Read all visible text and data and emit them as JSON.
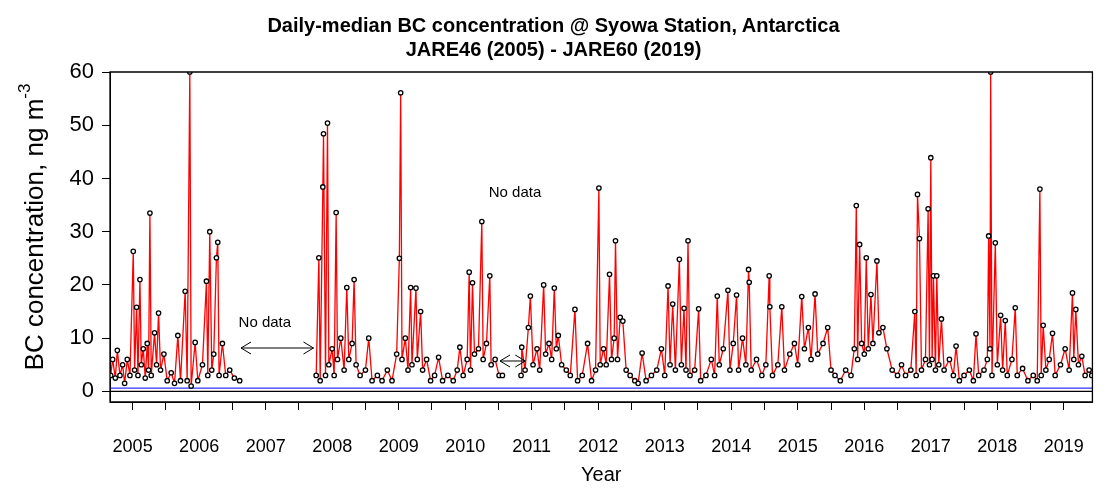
{
  "chart_data": {
    "type": "line",
    "title": "Daily-median BC concentration @ Syowa Station, Antarctica",
    "subtitle": "JARE46 (2005) - JARE60 (2019)",
    "xlabel": "Year",
    "ylabel": "BC concentration, ng m$^{-3}$",
    "x": [
      2005.17,
      2005.2,
      2005.24,
      2005.27,
      2005.31,
      2005.35,
      2005.38,
      2005.42,
      2005.46,
      2005.51,
      2005.53,
      2005.56,
      2005.58,
      2005.61,
      2005.63,
      2005.66,
      2005.69,
      2005.72,
      2005.74,
      2005.76,
      2005.78,
      2005.83,
      2005.86,
      2005.89,
      2005.92,
      2005.97,
      2006.02,
      2006.08,
      2006.13,
      2006.18,
      2006.22,
      2006.29,
      2006.32,
      2006.36,
      2006.38,
      2006.44,
      2006.48,
      2006.55,
      2006.61,
      2006.63,
      2006.66,
      2006.69,
      2006.72,
      2006.76,
      2006.78,
      2006.8,
      2006.85,
      2006.9,
      2006.96,
      2007.03,
      2007.11,
      2007.5,
      2008.26,
      2008.3,
      2008.32,
      2008.36,
      2008.37,
      2008.4,
      2008.43,
      2008.45,
      2008.5,
      2008.53,
      2008.56,
      2008.58,
      2008.63,
      2008.68,
      2008.72,
      2008.75,
      2008.8,
      2008.83,
      2008.86,
      2008.92,
      2009.0,
      2009.05,
      2009.1,
      2009.18,
      2009.25,
      2009.33,
      2009.4,
      2009.47,
      2009.51,
      2009.53,
      2009.55,
      2009.6,
      2009.64,
      2009.68,
      2009.7,
      2009.76,
      2009.78,
      2009.83,
      2009.86,
      2009.92,
      2009.98,
      2010.04,
      2010.1,
      2010.16,
      2010.24,
      2010.32,
      2010.38,
      2010.42,
      2010.47,
      2010.53,
      2010.56,
      2010.58,
      2010.61,
      2010.64,
      2010.7,
      2010.75,
      2010.77,
      2010.82,
      2010.87,
      2010.89,
      2010.95,
      2011.01,
      2011.06,
      2011.2,
      2011.34,
      2011.35,
      2011.4,
      2011.45,
      2011.48,
      2011.52,
      2011.58,
      2011.62,
      2011.68,
      2011.71,
      2011.76,
      2011.8,
      2011.84,
      2011.87,
      2011.9,
      2011.95,
      2012.02,
      2012.08,
      2012.15,
      2012.19,
      2012.26,
      2012.34,
      2012.4,
      2012.46,
      2012.51,
      2012.53,
      2012.58,
      2012.62,
      2012.67,
      2012.7,
      2012.74,
      2012.76,
      2012.79,
      2012.83,
      2012.87,
      2012.92,
      2012.98,
      2013.05,
      2013.1,
      2013.16,
      2013.22,
      2013.3,
      2013.38,
      2013.45,
      2013.5,
      2013.55,
      2013.58,
      2013.62,
      2013.66,
      2013.72,
      2013.75,
      2013.79,
      2013.82,
      2013.85,
      2013.88,
      2013.95,
      2014.01,
      2014.04,
      2014.12,
      2014.2,
      2014.25,
      2014.29,
      2014.32,
      2014.38,
      2014.45,
      2014.48,
      2014.53,
      2014.58,
      2014.61,
      2014.67,
      2014.72,
      2014.76,
      2014.77,
      2014.8,
      2014.88,
      2014.96,
      2015.02,
      2015.07,
      2015.08,
      2015.12,
      2015.2,
      2015.26,
      2015.3,
      2015.38,
      2015.45,
      2015.5,
      2015.56,
      2015.6,
      2015.66,
      2015.7,
      2015.76,
      2015.8,
      2015.88,
      2015.95,
      2016.0,
      2016.06,
      2016.14,
      2016.22,
      2016.3,
      2016.35,
      2016.38,
      2016.4,
      2016.43,
      2016.46,
      2016.5,
      2016.53,
      2016.56,
      2016.6,
      2016.63,
      2016.69,
      2016.72,
      2016.78,
      2016.84,
      2016.92,
      2017.0,
      2017.06,
      2017.12,
      2017.2,
      2017.26,
      2017.28,
      2017.3,
      2017.33,
      2017.36,
      2017.42,
      2017.46,
      2017.48,
      2017.5,
      2017.52,
      2017.54,
      2017.57,
      2017.59,
      2017.62,
      2017.66,
      2017.7,
      2017.78,
      2017.84,
      2017.88,
      2017.93,
      2018.0,
      2018.08,
      2018.14,
      2018.18,
      2018.22,
      2018.3,
      2018.35,
      2018.37,
      2018.39,
      2018.4,
      2018.42,
      2018.47,
      2018.5,
      2018.55,
      2018.58,
      2018.62,
      2018.65,
      2018.72,
      2018.77,
      2018.8,
      2018.88,
      2018.96,
      2019.04,
      2019.1,
      2019.14,
      2019.16,
      2019.19,
      2019.23,
      2019.28,
      2019.33,
      2019.37,
      2019.45,
      2019.52,
      2019.58,
      2019.63,
      2019.65,
      2019.68,
      2019.72,
      2019.77,
      2019.82,
      2019.88,
      2019.92
    ],
    "series": [
      {
        "color": "#ff0000",
        "values": [
          3,
          6,
          2.5,
          7.7,
          3,
          5,
          1.5,
          6,
          3,
          26.3,
          4,
          15.8,
          3,
          21,
          5,
          8,
          2.5,
          9,
          4,
          33.5,
          3,
          11,
          5,
          14.7,
          4,
          7,
          2,
          3.5,
          1.5,
          10.5,
          2,
          18.8,
          2,
          60,
          1,
          9.2,
          2,
          5,
          20.7,
          3,
          30,
          4,
          7,
          25.1,
          28,
          3,
          9,
          3,
          4,
          2.5,
          2,
          null,
          3,
          25.1,
          2,
          38.4,
          48.4,
          3,
          50.4,
          5,
          8,
          3,
          33.6,
          6,
          10,
          4,
          19.5,
          6,
          9,
          21,
          5,
          3,
          4,
          10,
          2,
          3,
          2,
          4,
          2,
          7,
          25,
          56.1,
          6,
          10,
          4,
          19.5,
          5,
          19.4,
          6,
          15,
          4,
          6,
          2,
          3,
          6.4,
          2,
          3,
          2,
          4,
          8.3,
          3,
          6,
          22.4,
          4,
          20.4,
          7,
          8,
          31.9,
          6,
          9,
          21.7,
          5,
          6,
          3,
          3,
          null,
          3,
          8.3,
          4,
          12,
          17.9,
          5,
          8,
          4,
          20,
          7,
          9,
          6,
          19.4,
          8,
          10.5,
          5,
          4,
          3,
          15.4,
          2,
          3,
          9,
          2,
          4,
          38.2,
          5,
          8,
          5,
          22,
          6,
          10,
          28.3,
          6,
          13.9,
          13.2,
          4,
          3,
          2,
          1.5,
          7.2,
          2,
          3,
          4,
          8,
          3,
          19.8,
          5,
          16.4,
          4,
          24.8,
          5,
          15.6,
          4,
          28.3,
          3,
          4,
          15.5,
          2,
          3,
          6,
          3,
          17.9,
          5,
          8,
          19,
          4,
          9,
          18.1,
          4,
          10,
          5,
          22.9,
          20.5,
          4,
          6,
          3,
          5,
          21.7,
          15.9,
          3,
          5,
          15.9,
          4,
          7,
          9,
          5,
          17.8,
          8,
          12,
          6,
          18.3,
          7,
          9,
          12,
          4,
          3,
          2,
          4,
          3,
          8,
          34.9,
          6,
          27.6,
          9,
          7,
          25.1,
          8,
          18.2,
          9,
          24.5,
          11,
          12,
          8,
          4,
          3,
          5,
          3,
          4,
          15,
          3,
          37,
          28.7,
          4,
          6,
          34.3,
          5,
          43.9,
          6,
          21.7,
          4,
          21.7,
          5,
          13.6,
          4,
          6,
          3,
          8.5,
          2,
          3,
          4,
          2,
          10.8,
          3,
          4,
          6,
          29.2,
          8,
          60,
          3,
          27.9,
          5,
          14.3,
          4,
          13.3,
          3,
          6,
          15.7,
          3,
          4.3,
          2,
          3,
          2,
          38,
          3,
          12.4,
          4,
          6,
          10.9,
          3,
          5,
          8,
          4,
          18.5,
          6,
          15.4,
          5,
          6.6,
          3,
          4,
          3
        ]
      }
    ],
    "xlim": [
      2005.16,
      2019.93
    ],
    "ylim": [
      -2,
      60
    ],
    "yticks": [
      0,
      10,
      20,
      30,
      40,
      50,
      60
    ],
    "xticks": [
      {
        "value": 2005.5,
        "label": "2005"
      },
      {
        "value": 2006,
        "label": null
      },
      {
        "value": 2006.5,
        "label": "2006"
      },
      {
        "value": 2007,
        "label": null
      },
      {
        "value": 2007.5,
        "label": "2007"
      },
      {
        "value": 2008,
        "label": null
      },
      {
        "value": 2008.5,
        "label": "2008"
      },
      {
        "value": 2009,
        "label": null
      },
      {
        "value": 2009.5,
        "label": "2009"
      },
      {
        "value": 2010,
        "label": null
      },
      {
        "value": 2010.5,
        "label": "2010"
      },
      {
        "value": 2011,
        "label": null
      },
      {
        "value": 2011.5,
        "label": "2011"
      },
      {
        "value": 2012,
        "label": null
      },
      {
        "value": 2012.5,
        "label": "2012"
      },
      {
        "value": 2013,
        "label": null
      },
      {
        "value": 2013.5,
        "label": "2013"
      },
      {
        "value": 2014,
        "label": null
      },
      {
        "value": 2014.5,
        "label": "2014"
      },
      {
        "value": 2015,
        "label": null
      },
      {
        "value": 2015.5,
        "label": "2015"
      },
      {
        "value": 2016,
        "label": null
      },
      {
        "value": 2016.5,
        "label": "2016"
      },
      {
        "value": 2017,
        "label": null
      },
      {
        "value": 2017.5,
        "label": "2017"
      },
      {
        "value": 2018,
        "label": null
      },
      {
        "value": 2018.5,
        "label": "2018"
      },
      {
        "value": 2019,
        "label": null
      },
      {
        "value": 2019.5,
        "label": "2019"
      }
    ],
    "ref_lines": [
      {
        "axis": "y",
        "value": 0,
        "color": "#000000"
      },
      {
        "axis": "y",
        "value": 0.6,
        "color": "#3333ff"
      }
    ],
    "annotations": [
      {
        "text": "No data",
        "x": 2008.27,
        "y": 8.2
      },
      "No data"
    ],
    "marker": "circle",
    "line_style": "solid",
    "grid": false,
    "legend": false
  }
}
